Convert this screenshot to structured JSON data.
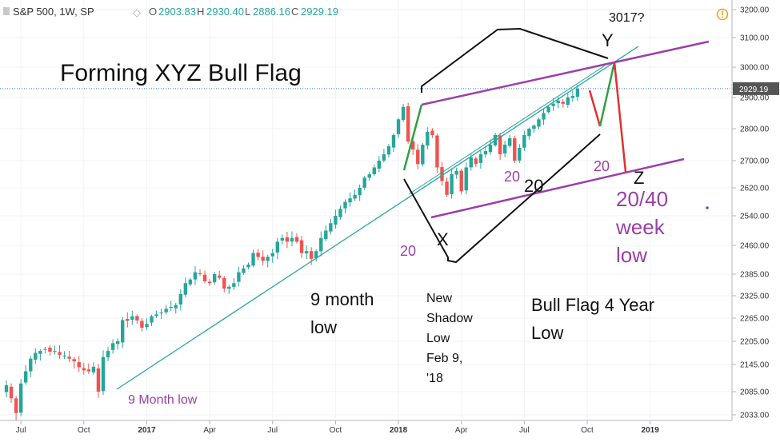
{
  "header": {
    "symbol": "S&P 500, 1W, SP",
    "open_label": "O",
    "open": "2903.83",
    "high_label": "H",
    "high": "2930.40",
    "low_label": "L",
    "low": "2886.16",
    "close_label": "C",
    "close": "2929.19",
    "last_price_badge": "2929.19"
  },
  "colors": {
    "up": "#26a69a",
    "down": "#ef5350",
    "trendline": "#26a69a",
    "channel": "#9b3fa8",
    "annotation_purple": "#9b3fa8",
    "annotation_black": "#111111",
    "pattern_up": "#2ea043",
    "pattern_down": "#e0312f",
    "price_line": "#2a7bd4"
  },
  "annotations": {
    "title": "Forming XYZ Bull Flag",
    "target": "3017?",
    "y_label": "Y",
    "x_label": "X",
    "z_label": "Z",
    "twenty_a": "20",
    "twenty_b": "20",
    "twenty_c": "20",
    "twenty_d": "20",
    "nine_month_low_line1": "9 month",
    "nine_month_low_line2": "low",
    "nine_month_low_small": "9 Month low",
    "new_shadow": [
      "New",
      "Shadow",
      "Low",
      "Feb 9,",
      "'18"
    ],
    "bull_flag_low_line1": "Bull Flag 4 Year",
    "bull_flag_low_line2": "Low",
    "week_low": [
      "20/40",
      "week",
      "low"
    ]
  },
  "chart_data": {
    "type": "candlestick",
    "title": "S&P 500, 1W, SP",
    "xlabel": "",
    "ylabel": "",
    "y_ticks": [
      3200,
      3100,
      3000,
      2900,
      2800,
      2700,
      2620,
      2540,
      2460,
      2385,
      2325,
      2265,
      2205,
      2145,
      2085,
      2033
    ],
    "y_tick_labels": [
      "3200.00",
      "3100.00",
      "3000.00",
      "2900.00",
      "2800.00",
      "2700.00",
      "2620.00",
      "2540.00",
      "2460.00",
      "2385.00",
      "2325.00",
      "2265.00",
      "2205.00",
      "2145.00",
      "2085.00",
      "2033.00"
    ],
    "ylim": [
      2030,
      3230
    ],
    "x_ticks": [
      {
        "label": "Jul",
        "week": 3
      },
      {
        "label": "Oct",
        "week": 16
      },
      {
        "label": "2017",
        "week": 29
      },
      {
        "label": "Apr",
        "week": 42
      },
      {
        "label": "Jul",
        "week": 55
      },
      {
        "label": "Oct",
        "week": 68
      },
      {
        "label": "2018",
        "week": 81
      },
      {
        "label": "Apr",
        "week": 94
      },
      {
        "label": "Jul",
        "week": 107
      },
      {
        "label": "Oct",
        "week": 120
      },
      {
        "label": "2019",
        "week": 133
      }
    ],
    "x_range": [
      -3,
      140
    ],
    "close_series": [
      2099,
      2070,
      2037,
      2103,
      2130,
      2160,
      2175,
      2180,
      2185,
      2178,
      2180,
      2170,
      2168,
      2160,
      2153,
      2139,
      2132,
      2130,
      2140,
      2085,
      2164,
      2180,
      2200,
      2205,
      2260,
      2258,
      2270,
      2259,
      2240,
      2250,
      2270,
      2275,
      2280,
      2290,
      2295,
      2300,
      2330,
      2360,
      2370,
      2390,
      2385,
      2365,
      2360,
      2385,
      2375,
      2345,
      2350,
      2360,
      2390,
      2400,
      2410,
      2440,
      2430,
      2420,
      2430,
      2440,
      2470,
      2480,
      2470,
      2480,
      2470,
      2440,
      2445,
      2425,
      2445,
      2480,
      2500,
      2520,
      2540,
      2560,
      2580,
      2590,
      2600,
      2620,
      2650,
      2660,
      2680,
      2700,
      2720,
      2745,
      2780,
      2830,
      2870,
      2760,
      2735,
      2690,
      2750,
      2790,
      2780,
      2680,
      2640,
      2600,
      2660,
      2670,
      2610,
      2680,
      2710,
      2690,
      2720,
      2730,
      2750,
      2780,
      2720,
      2750,
      2770,
      2700,
      2740,
      2780,
      2800,
      2810,
      2830,
      2850,
      2870,
      2880,
      2890,
      2880,
      2900,
      2905,
      2929
    ]
  }
}
